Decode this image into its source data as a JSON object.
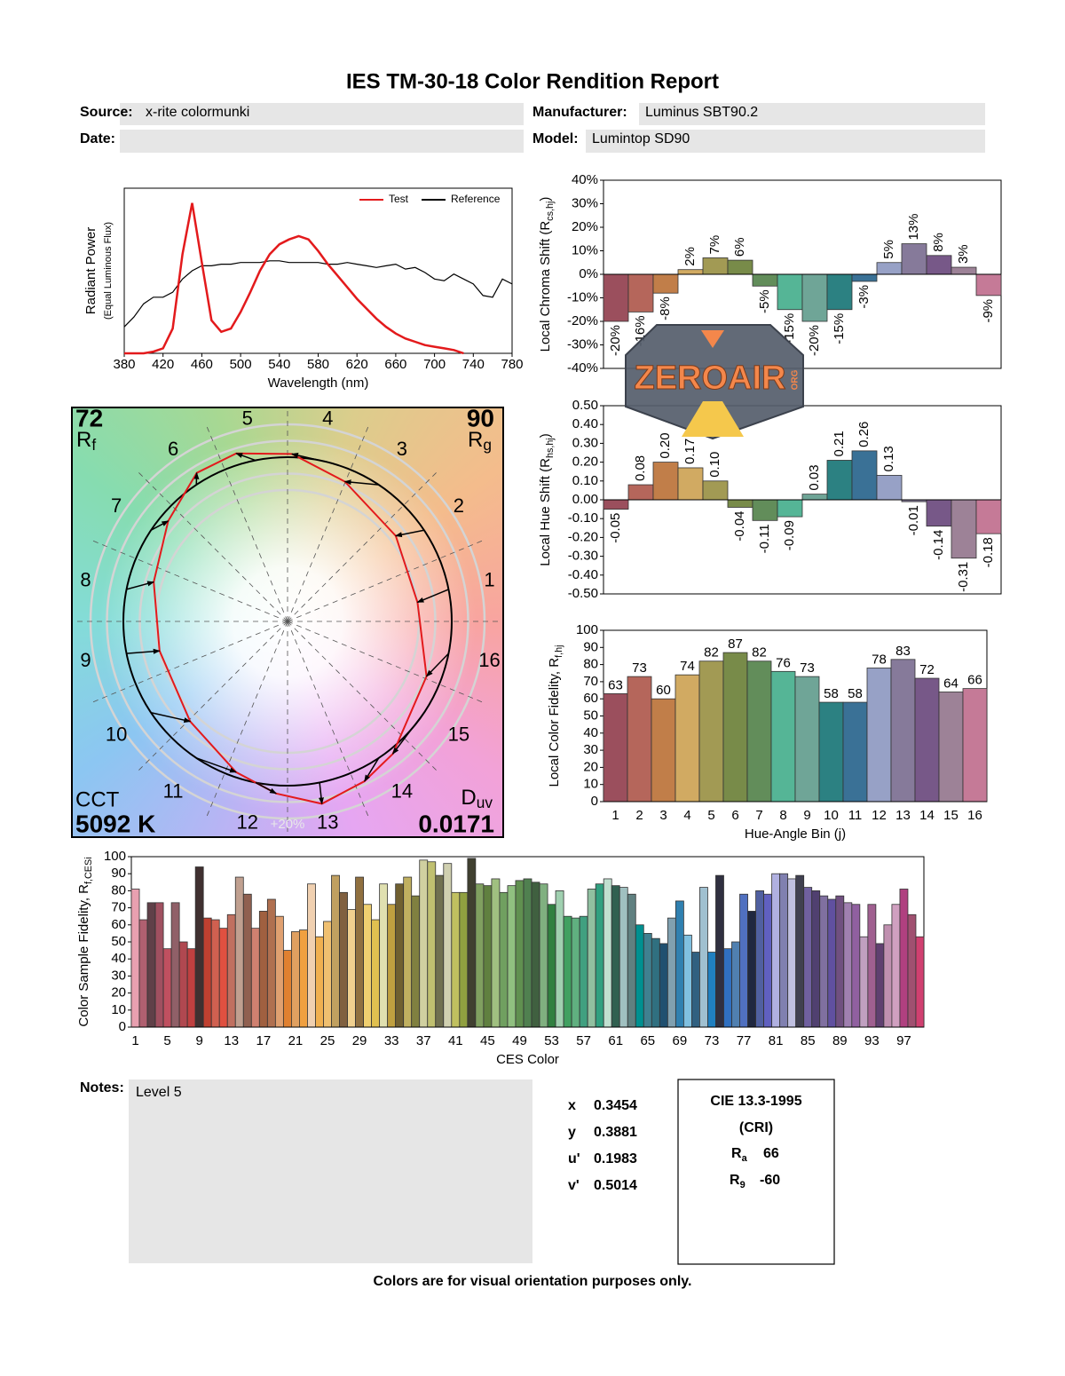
{
  "header": {
    "title": "IES TM-30-18 Color Rendition Report",
    "source_label": "Source:",
    "source": "x-rite colormunki",
    "manufacturer_label": "Manufacturer:",
    "manufacturer": "Luminus SBT90.2",
    "date_label": "Date:",
    "model_label": "Model:",
    "model": "Lumintop SD90"
  },
  "chart_data": [
    {
      "type": "line",
      "x_label": "Wavelength (nm)",
      "y_label": "Radiant Power",
      "y_sublabel": "(Equal Luminous Flux)",
      "x": [
        380,
        390,
        400,
        410,
        420,
        430,
        440,
        450,
        460,
        470,
        480,
        490,
        500,
        510,
        520,
        530,
        540,
        550,
        560,
        570,
        580,
        590,
        600,
        610,
        620,
        630,
        640,
        650,
        660,
        670,
        680,
        690,
        700,
        710,
        720,
        730,
        740,
        750,
        760,
        770,
        780
      ],
      "series": [
        {
          "name": "Test",
          "color": "#e31a1c",
          "values": [
            0,
            0,
            0,
            0.01,
            0.03,
            0.15,
            0.6,
            0.91,
            0.55,
            0.2,
            0.13,
            0.15,
            0.25,
            0.37,
            0.5,
            0.6,
            0.66,
            0.69,
            0.71,
            0.69,
            0.62,
            0.54,
            0.47,
            0.4,
            0.33,
            0.27,
            0.21,
            0.16,
            0.12,
            0.09,
            0.07,
            0.05,
            0.04,
            0.03,
            0.02,
            0,
            null,
            null,
            null,
            null,
            null
          ]
        },
        {
          "name": "Reference",
          "color": "#000000",
          "values": [
            0.16,
            0.22,
            0.3,
            0.34,
            0.34,
            0.37,
            0.45,
            0.5,
            0.53,
            0.53,
            0.54,
            0.54,
            0.55,
            0.55,
            0.55,
            0.56,
            0.56,
            0.55,
            0.55,
            0.55,
            0.55,
            0.54,
            0.54,
            0.55,
            0.54,
            0.53,
            0.52,
            0.53,
            0.54,
            0.51,
            0.52,
            0.49,
            0.45,
            0.44,
            0.48,
            0.45,
            0.42,
            0.35,
            0.34,
            0.45,
            0.42
          ]
        }
      ],
      "xlim": [
        380,
        780
      ],
      "xticks": [
        380,
        420,
        460,
        500,
        540,
        580,
        620,
        660,
        700,
        740,
        780
      ],
      "ylim": [
        0,
        1
      ],
      "legend": "upper right"
    },
    {
      "type": "bar",
      "y_label": "Local Chroma Shift (R",
      "y_label_sub": "cs,hj",
      "y_label_end": ")",
      "values": [
        -20,
        -16,
        -8,
        2,
        7,
        6,
        -5,
        -15,
        -20,
        -15,
        -3,
        5,
        13,
        8,
        3,
        -9
      ],
      "value_labels": [
        "-20%",
        "-16%",
        "-8%",
        "2%",
        "7%",
        "6%",
        "-5%",
        "-15%",
        "-20%",
        "-15%",
        "-3%",
        "5%",
        "13%",
        "8%",
        "3%",
        "-9%"
      ],
      "colors": [
        "#9b4f5d",
        "#b5665b",
        "#c17e49",
        "#d1aa62",
        "#a29a54",
        "#788b49",
        "#628d5a",
        "#55b596",
        "#6fa597",
        "#2c8182",
        "#3a7196",
        "#97a1c6",
        "#867a9a",
        "#775888",
        "#9d8297",
        "#c57a97"
      ],
      "ylim": [
        -40,
        40
      ],
      "yticks": [
        {
          "value": -40,
          "label": "-40%"
        },
        {
          "value": -30,
          "label": "-30%"
        },
        {
          "value": -20,
          "label": "-20%"
        },
        {
          "value": -10,
          "label": "-10%"
        },
        {
          "value": 0,
          "label": "0%"
        },
        {
          "value": 10,
          "label": "10%"
        },
        {
          "value": 20,
          "label": "20%"
        },
        {
          "value": 30,
          "label": "30%"
        },
        {
          "value": 40,
          "label": "40%"
        }
      ]
    },
    {
      "type": "bar",
      "y_label": "Local Hue Shift (R",
      "y_label_sub": "hs,hj",
      "y_label_end": ")",
      "values": [
        -0.05,
        0.08,
        0.2,
        0.17,
        0.1,
        -0.04,
        -0.11,
        -0.09,
        0.03,
        0.21,
        0.26,
        0.13,
        -0.01,
        -0.14,
        -0.31,
        -0.18
      ],
      "value_labels": [
        "-0.05",
        "0.08",
        "0.20",
        "0.17",
        "0.10",
        "-0.04",
        "-0.11",
        "-0.09",
        "0.03",
        "0.21",
        "0.26",
        "0.13",
        "-0.01",
        "-0.14",
        "-0.31",
        "-0.18"
      ],
      "colors": [
        "#9b4f5d",
        "#b5665b",
        "#c17e49",
        "#d1aa62",
        "#a29a54",
        "#788b49",
        "#628d5a",
        "#55b596",
        "#6fa597",
        "#2c8182",
        "#3a7196",
        "#97a1c6",
        "#867a9a",
        "#775888",
        "#9d8297",
        "#c57a97"
      ],
      "ylim": [
        -0.5,
        0.5
      ],
      "yticks": [
        {
          "value": -0.5,
          "label": "-0.50"
        },
        {
          "value": -0.4,
          "label": "-0.40"
        },
        {
          "value": -0.3,
          "label": "-0.30"
        },
        {
          "value": -0.2,
          "label": "-0.20"
        },
        {
          "value": -0.1,
          "label": "-0.10"
        },
        {
          "value": 0,
          "label": "0.00"
        },
        {
          "value": 0.1,
          "label": "0.10"
        },
        {
          "value": 0.2,
          "label": "0.20"
        },
        {
          "value": 0.3,
          "label": "0.30"
        },
        {
          "value": 0.4,
          "label": "0.40"
        },
        {
          "value": 0.5,
          "label": "0.50"
        }
      ]
    },
    {
      "type": "bar",
      "y_label": "Local Color Fidelity, R",
      "y_label_sub": "f,hj",
      "x_label": "Hue-Angle Bin (j)",
      "categories": [
        1,
        2,
        3,
        4,
        5,
        6,
        7,
        8,
        9,
        10,
        11,
        12,
        13,
        14,
        15,
        16
      ],
      "values": [
        63,
        73,
        60,
        74,
        82,
        87,
        82,
        76,
        73,
        58,
        58,
        78,
        83,
        72,
        64,
        66
      ],
      "colors": [
        "#9b4f5d",
        "#b5665b",
        "#c17e49",
        "#d1aa62",
        "#a29a54",
        "#788b49",
        "#628d5a",
        "#55b596",
        "#6fa597",
        "#2c8182",
        "#3a7196",
        "#97a1c6",
        "#867a9a",
        "#775888",
        "#9d8297",
        "#c57a97"
      ],
      "ylim": [
        0,
        100
      ],
      "yticks": [
        0,
        10,
        20,
        30,
        40,
        50,
        60,
        70,
        80,
        90,
        100
      ]
    },
    {
      "type": "vector",
      "bins": [
        1,
        2,
        3,
        4,
        5,
        6,
        7,
        8,
        9,
        10,
        11,
        12,
        13,
        14,
        15,
        16
      ],
      "fidelity_index": 72,
      "fidelity_label": "R",
      "fidelity_sub": "f",
      "gamut_index": 90,
      "gamut_label": "R",
      "gamut_sub": "g",
      "cct_label": "CCT",
      "cct": "5092 K",
      "duv_label": "D",
      "duv_sub": "uv",
      "duv": 0.0171,
      "ring_label": "+20%"
    },
    {
      "type": "bar",
      "y_label": "Color Sample Fidelity, R",
      "y_label_sub": "f,CESi",
      "x_label": "CES Color",
      "categories": [
        1,
        null,
        null,
        null,
        5,
        null,
        null,
        null,
        9,
        null,
        null,
        null,
        13,
        null,
        null,
        null,
        17,
        null,
        null,
        null,
        21,
        null,
        null,
        null,
        25,
        null,
        null,
        null,
        29,
        null,
        null,
        null,
        33,
        null,
        null,
        null,
        37,
        null,
        null,
        null,
        41,
        null,
        null,
        null,
        45,
        null,
        null,
        null,
        49,
        null,
        null,
        null,
        53,
        null,
        null,
        null,
        57,
        null,
        null,
        null,
        61,
        null,
        null,
        null,
        65,
        null,
        null,
        null,
        69,
        null,
        null,
        null,
        73,
        null,
        null,
        null,
        77,
        null,
        null,
        null,
        81,
        null,
        null,
        null,
        85,
        null,
        null,
        null,
        89,
        null,
        null,
        null,
        93,
        null,
        null,
        null,
        97,
        null,
        null
      ],
      "values": [
        81,
        63,
        73,
        73,
        46,
        73,
        50,
        46,
        94,
        64,
        63,
        58,
        66,
        88,
        78,
        58,
        68,
        75,
        65,
        45,
        56,
        57,
        84,
        53,
        62,
        89,
        79,
        69,
        88,
        72,
        63,
        84,
        72,
        84,
        88,
        77,
        98,
        97,
        89,
        96,
        79,
        79,
        99,
        84,
        83,
        87,
        79,
        83,
        86,
        87,
        85,
        84,
        72,
        80,
        65,
        64,
        65,
        81,
        84,
        87,
        83,
        82,
        78,
        60,
        55,
        52,
        49,
        64,
        74,
        54,
        44,
        82,
        44,
        89,
        46,
        50,
        78,
        68,
        80,
        78,
        90,
        90,
        87,
        89,
        82,
        80,
        77,
        75,
        77,
        73,
        72,
        53,
        72,
        49,
        60,
        72,
        81,
        66,
        53
      ],
      "colors": [
        "#e8a0b0",
        "#b06070",
        "#604048",
        "#a05060",
        "#c05060",
        "#906068",
        "#b04850",
        "#c04040",
        "#403030",
        "#c04030",
        "#d06050",
        "#e05040",
        "#c07060",
        "#c0a090",
        "#906050",
        "#d08070",
        "#a06040",
        "#b07050",
        "#e0a070",
        "#e08030",
        "#e0a060",
        "#f0a040",
        "#f0d0b0",
        "#f0b050",
        "#f0c070",
        "#c0a060",
        "#806040",
        "#f0d090",
        "#907040",
        "#f0d070",
        "#e0c050",
        "#e0e0b0",
        "#c0a040",
        "#706030",
        "#c0b060",
        "#808040",
        "#d0d0a0",
        "#c0c070",
        "#707050",
        "#d0d0b0",
        "#c0c060",
        "#90a040",
        "#404030",
        "#80a060",
        "#608040",
        "#a0c080",
        "#70a060",
        "#90c080",
        "#609050",
        "#508050",
        "#406040",
        "#80b080",
        "#308040",
        "#a0d0b0",
        "#40a060",
        "#60b080",
        "#40a080",
        "#90c0a0",
        "#30a080",
        "#c0e0d0",
        "#306050",
        "#a0c0c0",
        "#608080",
        "#009090",
        "#408090",
        "#307080",
        "#205070",
        "#80a0b0",
        "#3080b0",
        "#80c0e0",
        "#306080",
        "#a0c0d0",
        "#2080c0",
        "#303040",
        "#3070c0",
        "#5080b0",
        "#5070c0",
        "#202840",
        "#5060a0",
        "#6060c0",
        "#b0b0e0",
        "#8080b0",
        "#c0c0e0",
        "#404050",
        "#7060a0",
        "#504070",
        "#8070a0",
        "#6050a0",
        "#705080",
        "#a080b0",
        "#9060a0",
        "#c0a0c0",
        "#a06090",
        "#604070",
        "#c090b0",
        "#d0a0c0",
        "#b04080",
        "#a05070",
        "#d04070"
      ],
      "ylim": [
        0,
        100
      ],
      "yticks": [
        0,
        10,
        20,
        30,
        40,
        50,
        60,
        70,
        80,
        90,
        100
      ]
    }
  ],
  "notes": {
    "label": "Notes:",
    "text": "Level 5"
  },
  "chromaticity": [
    {
      "label": "x",
      "value": 0.3454
    },
    {
      "label": "y",
      "value": 0.3881
    },
    {
      "label": "u'",
      "value": 0.1983
    },
    {
      "label": "v'",
      "value": 0.5014
    }
  ],
  "cri": {
    "title": "CIE 13.3-1995",
    "subtitle": "(CRI)",
    "ra_label": "R",
    "ra_sub": "a",
    "ra": 66,
    "r9_label": "R",
    "r9_sub": "9",
    "r9": -60
  },
  "footer": "Colors are for visual orientation purposes only.",
  "watermark": {
    "text": "ZEROAIR",
    "sub": "ORG"
  }
}
